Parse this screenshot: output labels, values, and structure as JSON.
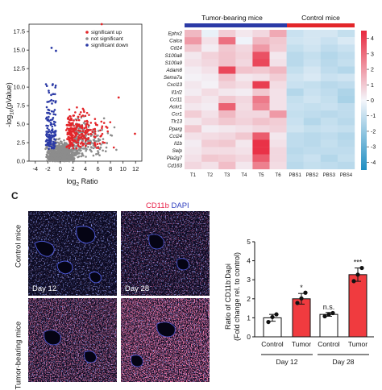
{
  "panel_c_letter": "C",
  "volcano": {
    "legend": [
      "significant up",
      "not significant",
      "significant down"
    ],
    "colors": {
      "up": "#e3262a",
      "ns": "#8c8c8c",
      "down": "#2b3aa6"
    },
    "xticks": [
      "-4",
      "-2",
      "0",
      "2",
      "4",
      "6",
      "8",
      "10",
      "12"
    ],
    "yticks": [
      "0.0",
      "2.5",
      "5.0",
      "7.5",
      "10.0",
      "12.5",
      "15.0",
      "17.5"
    ],
    "ylabel_pre": "-log",
    "ylabel_sub": "10",
    "ylabel_post": "(pValue)",
    "xlabel_pre": "log",
    "xlabel_sub": "2",
    "xlabel_post": " Ratio"
  },
  "heatmap": {
    "group_tumor": "Tumor-bearing mice",
    "group_control": "Control mice",
    "group_colors": {
      "tumor": "#2b3aa6",
      "control": "#e3262a"
    },
    "genes": [
      "Ephx2",
      "Calca",
      "Cd14",
      "S100a8",
      "S100a9",
      "Adam8",
      "Sema7a",
      "Cxcl13",
      "Il1rl2",
      "Ccl11",
      "Ackr1",
      "Ccr1",
      "Tlr13",
      "Pparg",
      "Ccl24",
      "Il1b",
      "Selp",
      "Pla2g7",
      "Cd163"
    ],
    "samples": [
      "T1",
      "T2",
      "T3",
      "T4",
      "T5",
      "T6",
      "PBS1",
      "PBS2",
      "PBS3",
      "PBS4"
    ],
    "scale_ticks": [
      "4",
      "3",
      "2",
      "1",
      "0",
      "-1",
      "-2",
      "-3",
      "-4"
    ]
  },
  "chart_data": [
    {
      "type": "scatter",
      "xlabel": "log2 Ratio",
      "ylabel": "-log10(pValue)",
      "xlim": [
        -5,
        13
      ],
      "ylim": [
        0,
        18.5
      ],
      "series": [
        {
          "name": "significant up",
          "color": "#e3262a"
        },
        {
          "name": "not significant",
          "color": "#8c8c8c"
        },
        {
          "name": "significant down",
          "color": "#2b3aa6"
        }
      ],
      "highlighted_points": [
        {
          "x": 6.6,
          "y": 18.5
        },
        {
          "x": -1.4,
          "y": 15.3
        },
        {
          "x": -0.7,
          "y": 14.9
        },
        {
          "x": 9.3,
          "y": 8.6
        },
        {
          "x": 11.9,
          "y": 3.7
        }
      ]
    },
    {
      "type": "heatmap",
      "rows": [
        "Ephx2",
        "Calca",
        "Cd14",
        "S100a8",
        "S100a9",
        "Adam8",
        "Sema7a",
        "Cxcl13",
        "Il1rl2",
        "Ccl11",
        "Ackr1",
        "Ccr1",
        "Tlr13",
        "Pparg",
        "Ccl24",
        "Il1b",
        "Selp",
        "Pla2g7",
        "Cd163"
      ],
      "columns": [
        "T1",
        "T2",
        "T3",
        "T4",
        "T5",
        "T6",
        "PBS1",
        "PBS2",
        "PBS3",
        "PBS4"
      ],
      "colorbar": [
        -4,
        4
      ],
      "values": [
        [
          1.2,
          -0.2,
          0.8,
          0.3,
          0.6,
          1.5,
          -0.8,
          -0.6,
          -0.6,
          -0.9
        ],
        [
          1.8,
          0.4,
          2.6,
          -0.1,
          1.2,
          0.9,
          -0.7,
          -0.6,
          -0.8,
          -0.5
        ],
        [
          0.9,
          0.2,
          0.9,
          0.6,
          1.8,
          0.8,
          -0.9,
          -0.7,
          -1.0,
          -0.8
        ],
        [
          0.3,
          0.7,
          1.0,
          0.7,
          3.2,
          0.3,
          -1.1,
          -0.9,
          -1.2,
          -1.0
        ],
        [
          0.4,
          0.6,
          1.0,
          0.6,
          3.4,
          0.4,
          -1.1,
          -0.8,
          -1.1,
          -0.9
        ],
        [
          0.2,
          0.4,
          3.4,
          1.0,
          0.9,
          1.2,
          -0.9,
          -0.6,
          -1.0,
          -1.2
        ],
        [
          0.1,
          0.2,
          1.0,
          0.3,
          0.4,
          0.8,
          -0.7,
          -0.5,
          -0.8,
          -0.7
        ],
        [
          0.3,
          0.1,
          0.7,
          0.5,
          3.6,
          0.5,
          -0.8,
          -0.9,
          -1.1,
          -1.0
        ],
        [
          0.2,
          0.5,
          0.3,
          0.2,
          0.9,
          0.4,
          -1.2,
          -0.8,
          -1.0,
          -1.3
        ],
        [
          0.5,
          0.3,
          0.9,
          0.6,
          2.4,
          0.4,
          -0.9,
          -0.7,
          -0.9,
          -1.4
        ],
        [
          0.3,
          0.2,
          2.9,
          0.5,
          2.1,
          0.4,
          -0.8,
          -0.9,
          -0.8,
          -1.0
        ],
        [
          0.8,
          0.4,
          1.2,
          0.6,
          0.6,
          1.8,
          -0.9,
          -1.0,
          -1.1,
          -1.0
        ],
        [
          0.3,
          0.6,
          0.9,
          0.7,
          1.0,
          0.8,
          -0.8,
          -1.2,
          -0.9,
          -1.1
        ],
        [
          0.9,
          0.2,
          0.3,
          0.4,
          0.6,
          0.7,
          -0.7,
          -0.9,
          -0.8,
          -0.9
        ],
        [
          0.4,
          0.5,
          0.6,
          0.9,
          3.0,
          0.3,
          -1.0,
          -1.1,
          -1.0,
          -1.2
        ],
        [
          0.2,
          0.8,
          0.9,
          0.3,
          3.8,
          0.4,
          -1.0,
          -1.1,
          -0.9,
          -1.1
        ],
        [
          0.3,
          0.5,
          0.5,
          0.4,
          3.8,
          0.6,
          -1.1,
          -1.0,
          -1.0,
          -1.0
        ],
        [
          0.4,
          0.9,
          0.8,
          0.6,
          3.0,
          0.6,
          -1.0,
          -0.8,
          -1.2,
          -0.9
        ],
        [
          0.6,
          0.4,
          1.1,
          0.3,
          2.3,
          0.5,
          -1.1,
          -0.9,
          -1.0,
          -1.1
        ]
      ]
    },
    {
      "type": "bar",
      "ylabel": "Ratio of CD11b:Dapi (Fold change rel. to control)",
      "ylim": [
        0,
        5
      ],
      "yticks": [
        "0",
        "1",
        "2",
        "3",
        "4",
        "5"
      ],
      "categories": [
        "Control",
        "Tumor",
        "Control",
        "Tumor"
      ],
      "groups": [
        "Day 12",
        "Day 28"
      ],
      "values": [
        1.0,
        2.0,
        1.18,
        3.27
      ],
      "errors": [
        0.18,
        0.28,
        0.1,
        0.35
      ],
      "points": [
        [
          0.78,
          1.04,
          1.18
        ],
        [
          1.78,
          2.02,
          2.32
        ],
        [
          1.08,
          1.17,
          1.25
        ],
        [
          2.93,
          3.27,
          3.62
        ]
      ],
      "bar_fills": [
        "#ffffff",
        "#f03b3f",
        "#ffffff",
        "#f03b3f"
      ],
      "significance": [
        "",
        "*",
        "n.s.",
        "***"
      ]
    }
  ],
  "micrographs": {
    "stain_cd11b": "CD11b",
    "stain_dapi": "DAPI",
    "row_control": "Control mice",
    "row_tumor": "Tumor-bearing mice",
    "day12": "Day 12",
    "day28": "Day 28",
    "cd11b_color": "#e8234a",
    "dapi_color": "#2f3fbf"
  }
}
